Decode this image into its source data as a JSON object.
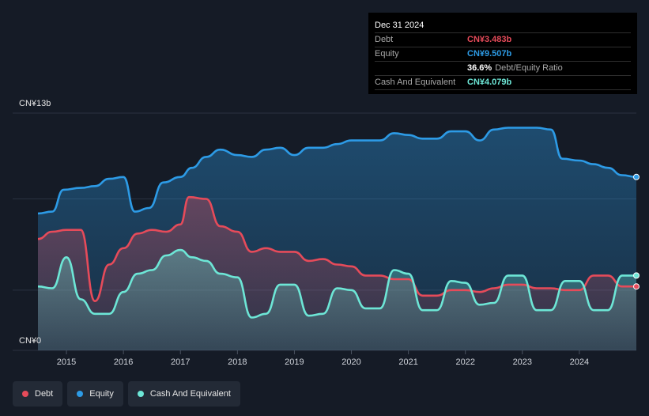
{
  "tooltip": {
    "date": "Dec 31 2024",
    "debt_label": "Debt",
    "debt_value": "CN¥3.483b",
    "equity_label": "Equity",
    "equity_value": "CN¥9.507b",
    "ratio_value": "36.6%",
    "ratio_label": "Debt/Equity Ratio",
    "cash_label": "Cash And Equivalent",
    "cash_value": "CN¥4.079b"
  },
  "legend": {
    "debt": "Debt",
    "equity": "Equity",
    "cash": "Cash And Equivalent"
  },
  "colors": {
    "debt": "#e64b5a",
    "equity": "#2d9be6",
    "cash": "#6de6d6",
    "background": "#151b26"
  },
  "chart_data": {
    "type": "area",
    "ylabel_top": "CN¥13b",
    "ylabel_bottom": "CN¥0",
    "ylim": [
      0,
      13
    ],
    "xlim": [
      2014.5,
      2025.0
    ],
    "x_ticks": [
      "2015",
      "2016",
      "2017",
      "2018",
      "2019",
      "2020",
      "2021",
      "2022",
      "2023",
      "2024"
    ],
    "grid": true,
    "series": [
      {
        "name": "Equity",
        "x": [
          2014.5,
          2014.75,
          2014.95,
          2015.25,
          2015.5,
          2015.75,
          2016.0,
          2016.2,
          2016.45,
          2016.7,
          2017.0,
          2017.2,
          2017.45,
          2017.7,
          2018.0,
          2018.25,
          2018.5,
          2018.75,
          2019.0,
          2019.25,
          2019.5,
          2019.75,
          2020.0,
          2020.25,
          2020.5,
          2020.75,
          2021.0,
          2021.25,
          2021.5,
          2021.75,
          2022.0,
          2022.25,
          2022.5,
          2022.75,
          2023.0,
          2023.25,
          2023.5,
          2023.7,
          2024.0,
          2024.25,
          2024.5,
          2024.75,
          2025.0
        ],
        "y": [
          7.5,
          7.6,
          8.8,
          8.9,
          9.0,
          9.4,
          9.5,
          7.6,
          7.8,
          9.2,
          9.5,
          10.0,
          10.6,
          11.0,
          10.7,
          10.6,
          11.0,
          11.1,
          10.7,
          11.1,
          11.1,
          11.3,
          11.5,
          11.5,
          11.5,
          11.9,
          11.8,
          11.6,
          11.6,
          12.0,
          12.0,
          11.5,
          12.1,
          12.2,
          12.2,
          12.2,
          12.1,
          10.5,
          10.4,
          10.2,
          10.0,
          9.6,
          9.5
        ]
      },
      {
        "name": "Debt",
        "x": [
          2014.5,
          2014.75,
          2015.0,
          2015.25,
          2015.5,
          2015.75,
          2016.0,
          2016.25,
          2016.5,
          2016.75,
          2017.0,
          2017.15,
          2017.45,
          2017.7,
          2018.0,
          2018.25,
          2018.5,
          2018.75,
          2019.0,
          2019.25,
          2019.5,
          2019.75,
          2020.0,
          2020.25,
          2020.5,
          2020.75,
          2021.0,
          2021.25,
          2021.5,
          2021.75,
          2022.0,
          2022.25,
          2022.5,
          2022.75,
          2023.0,
          2023.25,
          2023.5,
          2023.75,
          2024.0,
          2024.25,
          2024.5,
          2024.75,
          2025.0
        ],
        "y": [
          6.1,
          6.5,
          6.6,
          6.6,
          2.7,
          4.7,
          5.6,
          6.4,
          6.6,
          6.5,
          6.9,
          8.4,
          8.3,
          6.8,
          6.5,
          5.4,
          5.6,
          5.4,
          5.4,
          4.9,
          5.0,
          4.7,
          4.6,
          4.1,
          4.1,
          3.9,
          3.9,
          3.0,
          3.0,
          3.3,
          3.3,
          3.2,
          3.4,
          3.6,
          3.6,
          3.4,
          3.4,
          3.3,
          3.3,
          4.1,
          4.1,
          3.5,
          3.5
        ]
      },
      {
        "name": "Cash And Equivalent",
        "x": [
          2014.5,
          2014.75,
          2015.0,
          2015.25,
          2015.5,
          2015.75,
          2016.0,
          2016.25,
          2016.5,
          2016.75,
          2017.0,
          2017.2,
          2017.45,
          2017.7,
          2018.0,
          2018.25,
          2018.5,
          2018.75,
          2019.0,
          2019.25,
          2019.5,
          2019.75,
          2020.0,
          2020.25,
          2020.5,
          2020.75,
          2021.0,
          2021.25,
          2021.5,
          2021.75,
          2022.0,
          2022.25,
          2022.5,
          2022.75,
          2023.0,
          2023.25,
          2023.5,
          2023.75,
          2024.0,
          2024.25,
          2024.5,
          2024.75,
          2025.0
        ],
        "y": [
          3.5,
          3.4,
          5.1,
          2.8,
          2.0,
          2.0,
          3.2,
          4.2,
          4.4,
          5.2,
          5.5,
          5.1,
          4.9,
          4.2,
          4.0,
          1.8,
          2.0,
          3.6,
          3.6,
          1.9,
          2.0,
          3.4,
          3.3,
          2.3,
          2.3,
          4.4,
          4.2,
          2.2,
          2.2,
          3.8,
          3.7,
          2.5,
          2.6,
          4.1,
          4.1,
          2.2,
          2.2,
          3.8,
          3.8,
          2.2,
          2.2,
          4.1,
          4.1
        ]
      }
    ]
  }
}
